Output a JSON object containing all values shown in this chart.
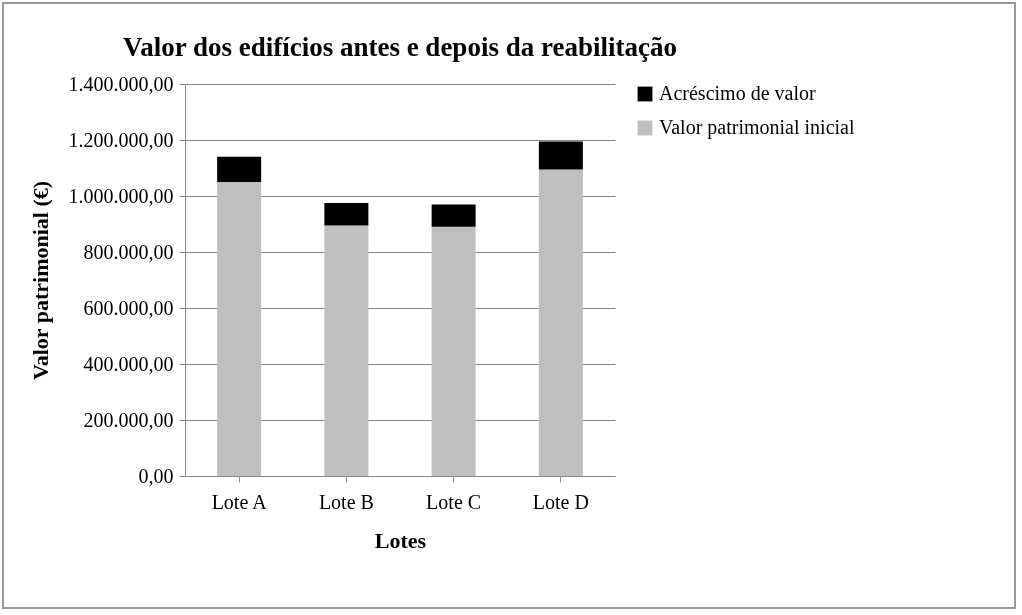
{
  "chart_data": {
    "type": "bar",
    "title": "Valor dos edifícios antes e depois da reabilitação",
    "xlabel": "Lotes",
    "ylabel": "Valor patrimonial (€)",
    "categories": [
      "Lote A",
      "Lote B",
      "Lote C",
      "Lote D"
    ],
    "stacked": true,
    "series": [
      {
        "name": "Valor patrimonial inicial",
        "color": "#bfbfbf",
        "values": [
          1050000,
          895000,
          890000,
          1095000
        ]
      },
      {
        "name": "Acréscimo de valor",
        "color": "#000000",
        "values": [
          90000,
          80000,
          80000,
          100000
        ]
      }
    ],
    "ylim": [
      0,
      1400000
    ],
    "yticks": [
      {
        "value": 0,
        "label": "0,00"
      },
      {
        "value": 200000,
        "label": "200.000,00"
      },
      {
        "value": 400000,
        "label": "400.000,00"
      },
      {
        "value": 600000,
        "label": "600.000,00"
      },
      {
        "value": 800000,
        "label": "800.000,00"
      },
      {
        "value": 1000000,
        "label": "1.000.000,00"
      },
      {
        "value": 1200000,
        "label": "1.200.000,00"
      },
      {
        "value": 1400000,
        "label": "1.400.000,00"
      }
    ],
    "grid": "y",
    "legend": "right"
  }
}
